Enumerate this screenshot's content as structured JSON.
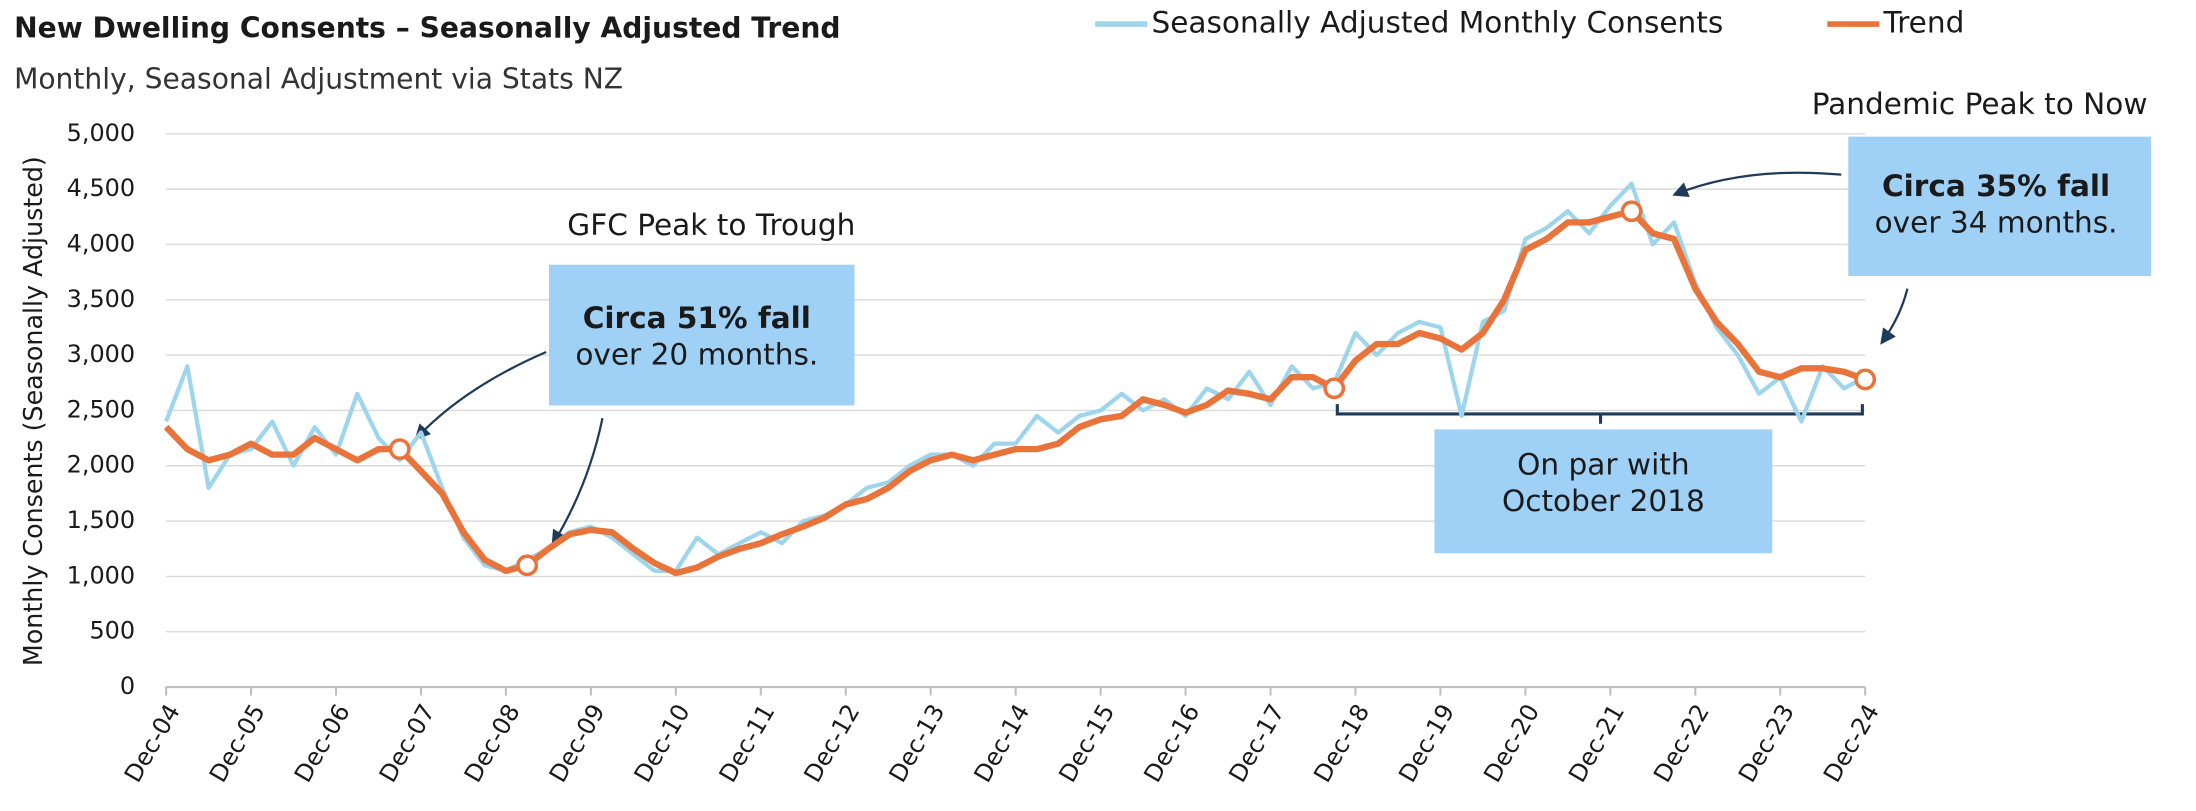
{
  "chart_data": {
    "type": "line",
    "title": "New Dwelling Consents – Seasonally Adjusted Trend",
    "subtitle": "Monthly, Seasonal Adjustment via Stats NZ",
    "y_label": "Monthly Consents (Seasonally Adjusted)",
    "categories": [
      "Dec-04",
      null,
      null,
      null,
      "Dec-05",
      null,
      null,
      null,
      "Dec-06",
      null,
      null,
      null,
      "Dec-07",
      null,
      null,
      null,
      "Dec-08",
      null,
      null,
      null,
      "Dec-09",
      null,
      null,
      null,
      "Dec-10",
      null,
      null,
      null,
      "Dec-11",
      null,
      null,
      null,
      "Dec-12",
      null,
      null,
      null,
      "Dec-13",
      null,
      null,
      null,
      "Dec-14",
      null,
      null,
      null,
      "Dec-15",
      null,
      null,
      null,
      "Dec-16",
      null,
      null,
      null,
      "Dec-17",
      null,
      null,
      null,
      "Dec-18",
      null,
      null,
      null,
      "Dec-19",
      null,
      null,
      null,
      "Dec-20",
      null,
      null,
      null,
      "Dec-21",
      null,
      null,
      null,
      "Dec-22",
      null,
      null,
      null,
      "Dec-23",
      null,
      null,
      null,
      "Dec-24"
    ],
    "series": [
      {
        "name": "Seasonally Adjusted Monthly Consents",
        "color": "#9dd5ec",
        "values": [
          2400,
          2900,
          1800,
          2100,
          2150,
          2400,
          2000,
          2350,
          2100,
          2650,
          2250,
          2050,
          2300,
          1800,
          1350,
          1100,
          1050,
          1150,
          1250,
          1400,
          1450,
          1350,
          1200,
          1050,
          1050,
          1350,
          1200,
          1300,
          1400,
          1300,
          1500,
          1550,
          1650,
          1800,
          1850,
          2000,
          2100,
          2100,
          2000,
          2200,
          2200,
          2450,
          2300,
          2450,
          2500,
          2650,
          2500,
          2600,
          2450,
          2700,
          2600,
          2850,
          2550,
          2900,
          2700,
          2750,
          3200,
          3000,
          3200,
          3300,
          3250,
          2450,
          3300,
          3400,
          4050,
          4150,
          4300,
          4100,
          4350,
          4550,
          4000,
          4200,
          3650,
          3250,
          3000,
          2650,
          2800,
          2400,
          2900,
          2700,
          2800
        ]
      },
      {
        "name": "Trend",
        "color": "#e8743b",
        "marked_points": [
          11,
          17,
          55,
          69,
          80
        ],
        "values": [
          2350,
          2150,
          2050,
          2100,
          2200,
          2100,
          2100,
          2250,
          2150,
          2050,
          2150,
          2150,
          1950,
          1750,
          1400,
          1150,
          1050,
          1100,
          1250,
          1380,
          1420,
          1400,
          1250,
          1120,
          1030,
          1080,
          1180,
          1250,
          1300,
          1380,
          1450,
          1530,
          1650,
          1700,
          1800,
          1950,
          2050,
          2100,
          2050,
          2100,
          2150,
          2150,
          2200,
          2350,
          2420,
          2450,
          2600,
          2550,
          2480,
          2550,
          2680,
          2650,
          2600,
          2800,
          2800,
          2700,
          2950,
          3100,
          3100,
          3200,
          3150,
          3050,
          3200,
          3500,
          3950,
          4050,
          4200,
          4200,
          4250,
          4300,
          4100,
          4050,
          3600,
          3300,
          3100,
          2850,
          2800,
          2880,
          2880,
          2850,
          2780
        ]
      }
    ],
    "ylim": [
      0,
      5000
    ],
    "yticks": [
      0,
      500,
      {
        "value": 1000,
        "label": "1,000"
      },
      {
        "value": 1500,
        "label": "1,500"
      },
      {
        "value": 2000,
        "label": "2,000"
      },
      {
        "value": 2500,
        "label": "2,500"
      },
      {
        "value": 3000,
        "label": "3,000"
      },
      {
        "value": 3500,
        "label": "3,500"
      },
      {
        "value": 4000,
        "label": "4,000"
      },
      {
        "value": 4500,
        "label": "4,500"
      },
      {
        "value": 5000,
        "label": "5,000"
      }
    ],
    "grid": true,
    "legend": "top",
    "annotations": [
      {
        "title": "GFC Peak to Trough",
        "lines": [
          "Circa 51% fall",
          "over 20 months."
        ]
      },
      {
        "title": "Pandemic Peak to Now",
        "lines": [
          "Circa 35% fall",
          "over 34 months."
        ]
      },
      {
        "lines": [
          "On par with",
          "October 2018"
        ]
      }
    ]
  }
}
